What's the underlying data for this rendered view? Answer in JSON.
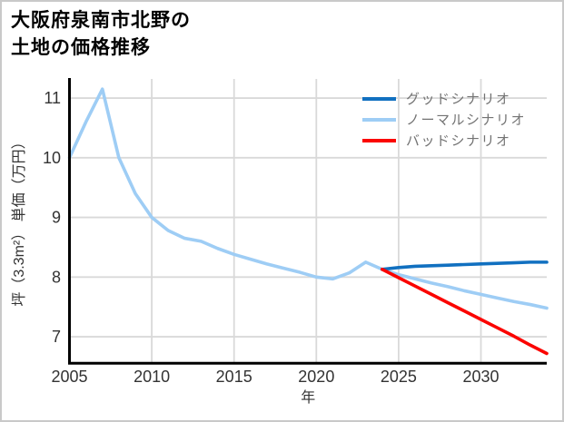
{
  "header": {
    "title_line1": "大阪府泉南市北野の",
    "title_line2": "土地の価格推移"
  },
  "chart_data": {
    "type": "line",
    "title": "大阪府泉南市北野の土地の価格推移",
    "xlabel": "年",
    "ylabel": "坪（3.3m²） 単価（万円）",
    "xlim": [
      2005,
      2034
    ],
    "ylim": [
      6.56,
      11.32
    ],
    "xticks": [
      2005,
      2010,
      2015,
      2020,
      2025,
      2030
    ],
    "yticks": [
      7,
      8,
      9,
      10,
      11
    ],
    "grid": true,
    "legend_position": "upper right",
    "series": [
      {
        "name": "グッドシナリオ",
        "color": "#1170c0",
        "x": [
          2024,
          2025,
          2026,
          2027,
          2028,
          2029,
          2030,
          2031,
          2032,
          2033,
          2034
        ],
        "values": [
          8.13,
          8.16,
          8.18,
          8.19,
          8.2,
          8.21,
          8.22,
          8.23,
          8.24,
          8.25,
          8.25
        ]
      },
      {
        "name": "ノーマルシナリオ",
        "color": "#9ecdf5",
        "x": [
          2005,
          2006,
          2007,
          2008,
          2009,
          2010,
          2011,
          2012,
          2013,
          2014,
          2015,
          2016,
          2017,
          2018,
          2019,
          2020,
          2021,
          2022,
          2023,
          2024,
          2025,
          2026,
          2027,
          2028,
          2029,
          2030,
          2031,
          2032,
          2033,
          2034
        ],
        "values": [
          10.0,
          10.6,
          11.15,
          10.0,
          9.4,
          9.0,
          8.78,
          8.65,
          8.6,
          8.48,
          8.38,
          8.3,
          8.22,
          8.15,
          8.08,
          8.0,
          7.97,
          8.07,
          8.25,
          8.13,
          8.04,
          7.97,
          7.9,
          7.84,
          7.77,
          7.71,
          7.65,
          7.59,
          7.54,
          7.48
        ]
      },
      {
        "name": "バッドシナリオ",
        "color": "#fb0400",
        "x": [
          2024,
          2025,
          2026,
          2027,
          2028,
          2029,
          2030,
          2031,
          2032,
          2033,
          2034
        ],
        "values": [
          8.13,
          7.99,
          7.85,
          7.71,
          7.57,
          7.43,
          7.29,
          7.15,
          7.01,
          6.86,
          6.72
        ]
      }
    ]
  },
  "colors": {
    "background": "#ffffff",
    "border": "#c9c9c9",
    "grid": "#d9d9d9",
    "axis": "#000000",
    "tick_label": "#333333",
    "legend_text": "#737373"
  }
}
